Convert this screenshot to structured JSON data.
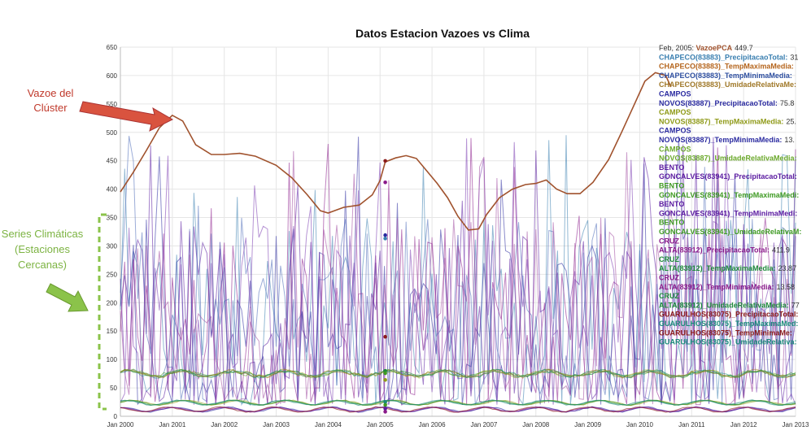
{
  "chart_data": {
    "type": "line",
    "title": "Datos Estacion Vazoes vs Clima",
    "ylim": [
      0,
      650
    ],
    "y_ticks": [
      0,
      50,
      100,
      150,
      200,
      250,
      300,
      350,
      400,
      450,
      500,
      550,
      600,
      650
    ],
    "x_ticks": [
      "Jan 2000",
      "Jan 2001",
      "Jan 2002",
      "Jan 2003",
      "Jan 2004",
      "Jan 2005",
      "Jan 2006",
      "Jan 2007",
      "Jan 2008",
      "Jan 2009",
      "Jan 2010",
      "Jan 2011",
      "Jan 2012",
      "Jan 2013"
    ],
    "grid": true,
    "hover": {
      "date": "Feb, 2005",
      "entries": [
        {
          "label": "VazoePCA",
          "value": "449.7",
          "color": "#a0522d"
        },
        {
          "label": "CHAPECO(83883)_PrecipitacaoTotal",
          "value": "31",
          "color": "#3a7fb0"
        },
        {
          "label": "CHAPECO(83883)_TempMaximaMedia",
          "value": "",
          "color": "#b5651d"
        },
        {
          "label": "CHAPECO(83883)_TempMinimaMedia",
          "value": "",
          "color": "#2e4fa0"
        },
        {
          "label": "CHAPECO(83883)_UmidadeRelativaMe",
          "value": "",
          "color": "#a07828"
        },
        {
          "label": "CAMPOS NOVOS(83887)_PrecipitacaoTotal",
          "value": "75.8",
          "color": "#2b2ba0"
        },
        {
          "label": "CAMPOS NOVOS(83887)_TempMaximaMedia",
          "value": "25.",
          "color": "#8f9a18"
        },
        {
          "label": "CAMPOS NOVOS(83887)_TempMinimaMedia",
          "value": "13.",
          "color": "#2b2ba0"
        },
        {
          "label": "CAMPOS NOVOS(83887)_UmidadeRelativaMedia",
          "value": "",
          "color": "#6aa82a"
        },
        {
          "label": "BENTO GONCALVES(83941)_PrecipitacaoTotal",
          "value": "",
          "color": "#5a1aa0"
        },
        {
          "label": "BENTO GONCALVES(83941)_TempMaximaMedi",
          "value": "",
          "color": "#3e9a22"
        },
        {
          "label": "BENTO GONCALVES(83941)_TempMinimaMedi",
          "value": "",
          "color": "#5a1aa0"
        },
        {
          "label": "BENTO GONCALVES(83941)_UmidadeRelativaM",
          "value": "",
          "color": "#3e9a22"
        },
        {
          "label": "CRUZ ALTA(83912)_PrecipitacaoTotal",
          "value": "411.9",
          "color": "#8a1a8a"
        },
        {
          "label": "CRUZ ALTA(83912)_TempMaximaMedia",
          "value": "23.87",
          "color": "#1e8a3a"
        },
        {
          "label": "CRUZ ALTA(83912)_TempMinimaMedia",
          "value": "13.58",
          "color": "#8a1a8a"
        },
        {
          "label": "CRUZ ALTA(83912)_UmidadeRelativaMedia",
          "value": "77",
          "color": "#1e8a3a"
        },
        {
          "label": "GUARULHOS(83075)_PrecipitacaoTotal",
          "value": "",
          "color": "#8a1a1a"
        },
        {
          "label": "GUARULHOS(83075)_TempMaximaMed",
          "value": "",
          "color": "#1a8a7a"
        },
        {
          "label": "GUARULHOS(83075)_TempMinimaMe",
          "value": "",
          "color": "#8a1a1a"
        },
        {
          "label": "GUARULHOS(83075)_UmidadeRelativa",
          "value": "",
          "color": "#1a8a7a"
        }
      ]
    },
    "series": [
      {
        "name": "VazoePCA",
        "color": "#a0522d",
        "x": [
          2000.0,
          2000.25,
          2000.5,
          2000.75,
          2001.0,
          2001.2,
          2001.45,
          2001.75,
          2002.0,
          2002.3,
          2002.6,
          2003.0,
          2003.3,
          2003.6,
          2003.85,
          2004.0,
          2004.3,
          2004.6,
          2004.85,
          2005.0,
          2005.1,
          2005.3,
          2005.5,
          2005.7,
          2005.9,
          2006.1,
          2006.3,
          2006.5,
          2006.7,
          2006.9,
          2007.05,
          2007.3,
          2007.55,
          2007.8,
          2008.0,
          2008.2,
          2008.4,
          2008.6,
          2008.85,
          2009.1,
          2009.4,
          2009.65,
          2009.9,
          2010.1,
          2010.3,
          2010.5,
          2010.6
        ],
        "values": [
          395,
          430,
          468,
          508,
          530,
          520,
          478,
          461,
          461,
          463,
          458,
          442,
          420,
          390,
          362,
          358,
          368,
          372,
          390,
          415,
          448,
          455,
          459,
          454,
          432,
          410,
          385,
          352,
          328,
          330,
          355,
          385,
          400,
          408,
          410,
          416,
          400,
          392,
          392,
          412,
          452,
          500,
          550,
          590,
          605,
          600,
          580
        ]
      }
    ],
    "climate_series_note": "Multiple climate station series (precipitation ~0-580, temperature ~10-30, humidity ~60-90) plotted as thin translucent lines across Jan 2000 - Jan 2013",
    "annotations": [
      {
        "text_lines": [
          "Vazoe del",
          "Clúster"
        ],
        "color": "#c0392b"
      },
      {
        "text_lines": [
          "Series Climáticas",
          "(Estaciones",
          "Cercanas)"
        ],
        "color": "#7cb342"
      }
    ]
  }
}
